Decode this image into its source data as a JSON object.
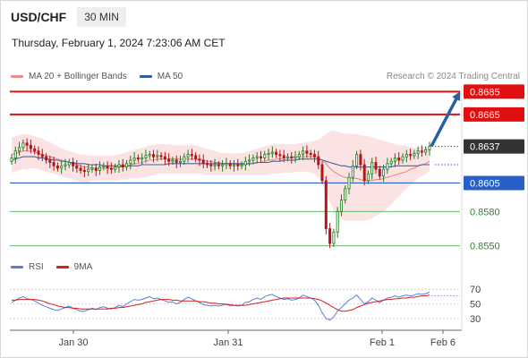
{
  "header": {
    "symbol": "USD/CHF",
    "timeframe": "30 MIN",
    "datetime": "Thursday, February 1, 2024 7:23:06 AM CET"
  },
  "credit": "Research © 2024 Trading Central",
  "legend_price": [
    {
      "label": "MA 20 + Bollinger Bands",
      "color": "#f08a8a"
    },
    {
      "label": "MA 50",
      "color": "#2f5f9e"
    }
  ],
  "legend_rsi": [
    {
      "label": "RSI",
      "color": "#5b7fd6"
    },
    {
      "label": "9MA",
      "color": "#d42020"
    }
  ],
  "colors": {
    "up": "#d42020",
    "down": "#1e8a1e",
    "candle_up": "#1e7a1e",
    "candle_down": "#b01818",
    "resistance": "#e01010",
    "support_blue": "#2860c8",
    "support_green": "#66bb66",
    "current": "#333333",
    "arrow": "#2a5fa0",
    "bands": "#fbe0e0"
  },
  "chart_data": [
    {
      "type": "candlestick",
      "title": "USD/CHF 30 MIN",
      "ylim": [
        0.8545,
        0.869
      ],
      "x_ticks": [
        "Jan 30",
        "Jan 31",
        "Feb 1",
        "Feb 6"
      ],
      "levels": [
        {
          "label": "0.8685",
          "value": 0.8685,
          "kind": "resistance"
        },
        {
          "label": "0.8665",
          "value": 0.8665,
          "kind": "resistance"
        },
        {
          "label": "0.8637",
          "value": 0.8637,
          "kind": "current"
        },
        {
          "label": "0.8605",
          "value": 0.8605,
          "kind": "support_blue"
        },
        {
          "label": "0.8580",
          "value": 0.858,
          "kind": "support_green"
        },
        {
          "label": "0.8550",
          "value": 0.855,
          "kind": "support_green"
        }
      ],
      "close_series": [
        0.8627,
        0.8633,
        0.8636,
        0.864,
        0.8638,
        0.8635,
        0.8633,
        0.863,
        0.8628,
        0.8625,
        0.8623,
        0.862,
        0.8618,
        0.862,
        0.8621,
        0.8623,
        0.862,
        0.8618,
        0.8616,
        0.8615,
        0.8617,
        0.8618,
        0.8616,
        0.8619,
        0.862,
        0.8618,
        0.8617,
        0.8619,
        0.8621,
        0.8619,
        0.8622,
        0.8625,
        0.8627,
        0.8626,
        0.8627,
        0.8629,
        0.863,
        0.8628,
        0.8629,
        0.8628,
        0.8626,
        0.8624,
        0.8625,
        0.8623,
        0.8624,
        0.8628,
        0.863,
        0.8629,
        0.8626,
        0.8625,
        0.8622,
        0.8621,
        0.862,
        0.8621,
        0.862,
        0.8621,
        0.8622,
        0.862,
        0.8621,
        0.862,
        0.8621,
        0.8624,
        0.8625,
        0.8627,
        0.8628,
        0.8627,
        0.863,
        0.8631,
        0.8632,
        0.863,
        0.8629,
        0.8627,
        0.8628,
        0.8627,
        0.8628,
        0.863,
        0.8633,
        0.8631,
        0.863,
        0.8628,
        0.8621,
        0.8607,
        0.8565,
        0.8552,
        0.8562,
        0.858,
        0.859,
        0.86,
        0.861,
        0.862,
        0.863,
        0.8621,
        0.8607,
        0.8613,
        0.8623,
        0.8617,
        0.8611,
        0.8617,
        0.8622,
        0.8624,
        0.8627,
        0.8625,
        0.8628,
        0.863,
        0.8629,
        0.8631,
        0.8633,
        0.8632,
        0.8634,
        0.8637
      ],
      "series": [
        {
          "name": "MA 20",
          "values": [
            0.863,
            0.8631,
            0.8632,
            0.8633,
            0.8633,
            0.8633,
            0.8632,
            0.8631,
            0.863,
            0.8629,
            0.8628,
            0.8627,
            0.8626,
            0.8625,
            0.8624,
            0.8623,
            0.8622,
            0.8621,
            0.862,
            0.8619,
            0.8619,
            0.8618,
            0.8618,
            0.8618,
            0.8618,
            0.8618,
            0.8618,
            0.8618,
            0.8619,
            0.8619,
            0.862,
            0.8621,
            0.8622,
            0.8622,
            0.8623,
            0.8624,
            0.8625,
            0.8625,
            0.8626,
            0.8626,
            0.8626,
            0.8626,
            0.8626,
            0.8626,
            0.8626,
            0.8626,
            0.8626,
            0.8626,
            0.8626,
            0.8625,
            0.8625,
            0.8624,
            0.8624,
            0.8623,
            0.8623,
            0.8622,
            0.8622,
            0.8622,
            0.8622,
            0.8621,
            0.8621,
            0.8621,
            0.8622,
            0.8622,
            0.8623,
            0.8623,
            0.8624,
            0.8625,
            0.8625,
            0.8626,
            0.8626,
            0.8627,
            0.8627,
            0.8627,
            0.8628,
            0.8628,
            0.8628,
            0.8628,
            0.8628,
            0.8628,
            0.8627,
            0.8625,
            0.8622,
            0.8618,
            0.8615,
            0.8613,
            0.8611,
            0.861,
            0.8609,
            0.8609,
            0.8609,
            0.8608,
            0.8607,
            0.8607,
            0.8607,
            0.8608,
            0.8608,
            0.8609,
            0.861,
            0.8611,
            0.8612,
            0.8613,
            0.8614,
            0.8615,
            0.8617,
            0.8618,
            0.862,
            0.8621,
            0.8622,
            0.8624
          ]
        },
        {
          "name": "MA 50",
          "values": [
            0.8625,
            0.8626,
            0.8627,
            0.8628,
            0.8628,
            0.8628,
            0.8628,
            0.8627,
            0.8627,
            0.8626,
            0.8626,
            0.8625,
            0.8625,
            0.8624,
            0.8624,
            0.8623,
            0.8623,
            0.8622,
            0.8622,
            0.8622,
            0.8621,
            0.8621,
            0.8621,
            0.8621,
            0.862,
            0.862,
            0.862,
            0.862,
            0.862,
            0.862,
            0.862,
            0.862,
            0.862,
            0.862,
            0.8621,
            0.8621,
            0.8621,
            0.8621,
            0.8621,
            0.8621,
            0.8621,
            0.8622,
            0.8622,
            0.8622,
            0.8622,
            0.8622,
            0.8622,
            0.8622,
            0.8622,
            0.8622,
            0.8622,
            0.8622,
            0.8622,
            0.8622,
            0.8622,
            0.8622,
            0.8622,
            0.8622,
            0.8622,
            0.8622,
            0.8622,
            0.8622,
            0.8622,
            0.8622,
            0.8623,
            0.8623,
            0.8623,
            0.8623,
            0.8624,
            0.8624,
            0.8624,
            0.8625,
            0.8625,
            0.8625,
            0.8625,
            0.8626,
            0.8626,
            0.8626,
            0.8626,
            0.8626,
            0.8626,
            0.8625,
            0.8624,
            0.8623,
            0.8622,
            0.8621,
            0.862,
            0.862,
            0.8619,
            0.8619,
            0.8619,
            0.8619,
            0.8619,
            0.8619,
            0.8619,
            0.8619,
            0.8619,
            0.8619,
            0.8619,
            0.8619,
            0.862,
            0.862,
            0.862,
            0.862,
            0.862,
            0.862,
            0.862,
            0.8621,
            0.8621,
            0.8621
          ]
        }
      ],
      "bollinger_upper": [
        0.8645,
        0.8646,
        0.8647,
        0.8648,
        0.8648,
        0.8647,
        0.8646,
        0.8645,
        0.8644,
        0.8642,
        0.8641,
        0.8639,
        0.8637,
        0.8635,
        0.8634,
        0.8633,
        0.8632,
        0.8631,
        0.863,
        0.863,
        0.8629,
        0.8629,
        0.8629,
        0.8629,
        0.8629,
        0.8629,
        0.8629,
        0.8629,
        0.863,
        0.8631,
        0.8632,
        0.8633,
        0.8634,
        0.8635,
        0.8636,
        0.8637,
        0.8638,
        0.8638,
        0.8639,
        0.8639,
        0.8639,
        0.8639,
        0.8638,
        0.8638,
        0.8638,
        0.8638,
        0.8638,
        0.8638,
        0.8638,
        0.8637,
        0.8636,
        0.8635,
        0.8634,
        0.8633,
        0.8632,
        0.8631,
        0.8631,
        0.8631,
        0.8631,
        0.8631,
        0.8631,
        0.8632,
        0.8633,
        0.8634,
        0.8635,
        0.8636,
        0.8637,
        0.8638,
        0.8639,
        0.8639,
        0.8639,
        0.8639,
        0.8639,
        0.8639,
        0.8639,
        0.864,
        0.864,
        0.8641,
        0.8641,
        0.8642,
        0.8643,
        0.8645,
        0.8648,
        0.865,
        0.8651,
        0.865,
        0.8649,
        0.8648,
        0.8648,
        0.8648,
        0.8648,
        0.8647,
        0.8646,
        0.8646,
        0.8645,
        0.8644,
        0.8643,
        0.8642,
        0.8641,
        0.864,
        0.8639,
        0.8638,
        0.8638,
        0.8637,
        0.8636,
        0.8636,
        0.8636,
        0.8637,
        0.8637,
        0.8638
      ],
      "bollinger_lower": [
        0.8614,
        0.8615,
        0.8616,
        0.8617,
        0.8617,
        0.8618,
        0.8618,
        0.8617,
        0.8616,
        0.8615,
        0.8614,
        0.8613,
        0.8612,
        0.8611,
        0.861,
        0.8609,
        0.8608,
        0.8607,
        0.8606,
        0.8606,
        0.8606,
        0.8607,
        0.8607,
        0.8607,
        0.8607,
        0.8607,
        0.8607,
        0.8607,
        0.8608,
        0.8608,
        0.8608,
        0.8609,
        0.8609,
        0.8609,
        0.861,
        0.861,
        0.8611,
        0.8612,
        0.8613,
        0.8613,
        0.8613,
        0.8613,
        0.8613,
        0.8613,
        0.8613,
        0.8613,
        0.8613,
        0.8613,
        0.8613,
        0.8613,
        0.8613,
        0.8612,
        0.8612,
        0.8612,
        0.8612,
        0.8612,
        0.8612,
        0.8612,
        0.8612,
        0.8612,
        0.8612,
        0.8612,
        0.8612,
        0.8612,
        0.8612,
        0.8612,
        0.8612,
        0.8613,
        0.8613,
        0.8613,
        0.8613,
        0.8614,
        0.8614,
        0.8614,
        0.8615,
        0.8615,
        0.8615,
        0.8615,
        0.8614,
        0.8613,
        0.861,
        0.8605,
        0.8596,
        0.8588,
        0.8581,
        0.8576,
        0.8574,
        0.8572,
        0.8572,
        0.8572,
        0.8572,
        0.8572,
        0.8572,
        0.8573,
        0.8574,
        0.8576,
        0.8578,
        0.858,
        0.8583,
        0.8586,
        0.859,
        0.8593,
        0.8597,
        0.86,
        0.8603,
        0.8606,
        0.8609,
        0.8611,
        0.8613,
        0.8615
      ],
      "forecast": {
        "from": 0.8637,
        "to": 0.8685
      }
    },
    {
      "type": "line",
      "title": "RSI",
      "ylim": [
        20,
        80
      ],
      "y_ticks": [
        "70",
        "50",
        "30"
      ],
      "y_tick_values": [
        70,
        50,
        30
      ],
      "series": [
        {
          "name": "RSI",
          "values": [
            52,
            55,
            58,
            60,
            57,
            56,
            54,
            51,
            48,
            46,
            44,
            42,
            41,
            43,
            45,
            47,
            44,
            42,
            40,
            40,
            42,
            44,
            42,
            45,
            46,
            44,
            43,
            45,
            48,
            46,
            50,
            53,
            56,
            55,
            56,
            58,
            60,
            57,
            58,
            56,
            54,
            52,
            53,
            50,
            52,
            56,
            59,
            57,
            54,
            52,
            49,
            48,
            47,
            48,
            47,
            48,
            50,
            47,
            48,
            47,
            48,
            52,
            53,
            56,
            58,
            56,
            60,
            62,
            63,
            60,
            58,
            56,
            57,
            55,
            56,
            58,
            62,
            60,
            58,
            55,
            48,
            38,
            30,
            28,
            32,
            40,
            45,
            50,
            55,
            58,
            62,
            56,
            50,
            53,
            58,
            55,
            52,
            55,
            58,
            59,
            61,
            59,
            61,
            62,
            61,
            62,
            64,
            63,
            64,
            66
          ]
        },
        {
          "name": "9MA",
          "values": [
            55,
            55,
            56,
            56,
            56,
            56,
            56,
            55,
            54,
            52,
            50,
            49,
            47,
            46,
            45,
            45,
            44,
            44,
            43,
            43,
            43,
            43,
            43,
            43,
            43,
            43,
            44,
            44,
            45,
            45,
            46,
            47,
            48,
            49,
            50,
            52,
            53,
            54,
            55,
            56,
            56,
            56,
            55,
            55,
            54,
            54,
            54,
            54,
            54,
            53,
            53,
            52,
            51,
            51,
            50,
            50,
            49,
            49,
            48,
            48,
            48,
            48,
            49,
            50,
            51,
            52,
            53,
            54,
            55,
            56,
            57,
            58,
            58,
            58,
            58,
            58,
            58,
            58,
            58,
            57,
            56,
            54,
            51,
            48,
            45,
            42,
            40,
            40,
            41,
            42,
            45,
            47,
            49,
            51,
            52,
            53,
            54,
            55,
            56,
            56,
            57,
            57,
            58,
            58,
            59,
            59,
            60,
            61,
            61,
            62
          ]
        }
      ]
    }
  ],
  "x_axis": {
    "ticks": [
      "Jan 30",
      "Jan 31",
      "Feb 1",
      "Feb 6"
    ]
  }
}
